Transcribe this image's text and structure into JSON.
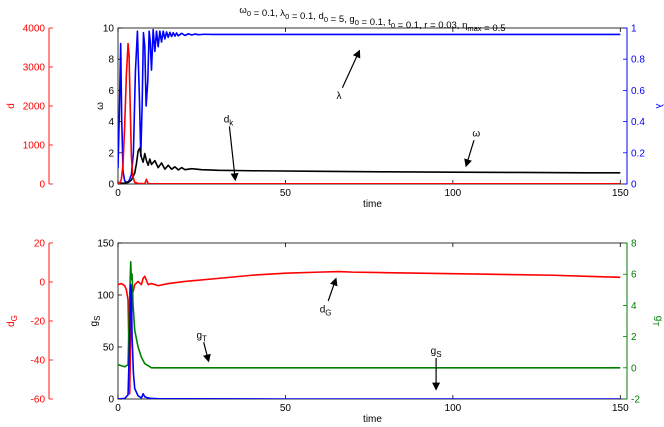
{
  "chart_data": [
    {
      "type": "line",
      "title": "ω0 = 0.1, λ0 = 0.1, d0 = 5, g0 = 0.1, t0 = 0.1, r = 0.03, ηmax = 0.5",
      "title_parts": [
        {
          "t": "ω"
        },
        {
          "t": "0",
          "sub": true
        },
        {
          "t": " = 0.1, λ"
        },
        {
          "t": "0",
          "sub": true
        },
        {
          "t": " = 0.1, d"
        },
        {
          "t": "0",
          "sub": true
        },
        {
          "t": " = 5, g"
        },
        {
          "t": "0",
          "sub": true
        },
        {
          "t": " = 0.1, t"
        },
        {
          "t": "0",
          "sub": true
        },
        {
          "t": " = 0.1, r = 0.03, η"
        },
        {
          "t": "max",
          "sub": true
        },
        {
          "t": " = 0.5"
        }
      ],
      "xlabel": "time",
      "xlim": [
        0,
        152
      ],
      "xticks": [
        0,
        50,
        100,
        150
      ],
      "axes": {
        "omega": {
          "label": "ω",
          "ylim": [
            0,
            10
          ],
          "ticks": [
            0,
            2,
            4,
            6,
            8,
            10
          ],
          "color": "#000000"
        },
        "d": {
          "label": "d",
          "ylim": [
            0,
            4000
          ],
          "ticks": [
            0,
            1000,
            2000,
            3000,
            4000
          ],
          "color": "#ff0000"
        },
        "lambda": {
          "label": "λ",
          "ylim": [
            0,
            1
          ],
          "ticks": [
            0,
            0.2,
            0.4,
            0.6,
            0.8,
            1
          ],
          "color": "#0000ff"
        }
      },
      "series": [
        {
          "key": "lambda",
          "axis": "lambda",
          "color": "#0000ff",
          "width": 1.6,
          "x": [
            0,
            0.4,
            0.8,
            1.1,
            1.5,
            2,
            2.6,
            3.3,
            4,
            4.6,
            5.2,
            5.8,
            6.4,
            6.8,
            7.2,
            7.6,
            8,
            8.4,
            8.9,
            9.3,
            9.6,
            10,
            10.5,
            11,
            11.5,
            12,
            12.5,
            13,
            13.5,
            14,
            14.5,
            15,
            15.5,
            16,
            16.5,
            17,
            17.5,
            18,
            19,
            20,
            21,
            22,
            23,
            24,
            26,
            28,
            30,
            40,
            60,
            80,
            100,
            120,
            140,
            150
          ],
          "y": [
            0.1,
            0.45,
            0.9,
            0.42,
            0.08,
            0.02,
            0.01,
            0.02,
            0.06,
            0.2,
            0.72,
            0.98,
            0.55,
            0.18,
            0.5,
            0.97,
            0.88,
            0.5,
            0.66,
            0.98,
            0.92,
            0.73,
            0.99,
            0.85,
            0.98,
            0.88,
            0.98,
            0.91,
            0.98,
            0.93,
            0.975,
            0.94,
            0.972,
            0.945,
            0.97,
            0.948,
            0.968,
            0.95,
            0.966,
            0.952,
            0.963,
            0.955,
            0.961,
            0.957,
            0.96,
            0.959,
            0.959,
            0.959,
            0.959,
            0.959,
            0.959,
            0.959,
            0.959,
            0.959
          ]
        },
        {
          "key": "omega",
          "axis": "omega",
          "color": "#000000",
          "width": 1.6,
          "x": [
            0,
            1,
            2,
            3,
            4,
            5,
            5.5,
            6,
            6.5,
            7,
            7.5,
            8,
            8.5,
            9,
            9.5,
            10,
            11,
            12,
            13,
            14,
            15,
            16,
            17,
            18,
            19,
            20,
            22,
            25,
            30,
            40,
            60,
            80,
            100,
            120,
            140,
            150
          ],
          "y": [
            0.05,
            0.05,
            0.06,
            0.1,
            0.25,
            0.7,
            1.3,
            2.1,
            2.3,
            1.7,
            1.4,
            1.95,
            1.5,
            1.2,
            1.6,
            1.25,
            1.5,
            1.05,
            1.35,
            0.95,
            1.2,
            0.95,
            1.1,
            0.9,
            1.05,
            0.92,
            0.98,
            0.92,
            0.88,
            0.85,
            0.81,
            0.78,
            0.76,
            0.74,
            0.72,
            0.72
          ]
        },
        {
          "key": "d",
          "axis": "d",
          "color": "#ff0000",
          "width": 1.6,
          "x": [
            0,
            0.5,
            1,
            1.5,
            2,
            2.5,
            3,
            3.3,
            3.7,
            4,
            4.4,
            5,
            6,
            7,
            8,
            8.5,
            9,
            10,
            12,
            15,
            20,
            50,
            100,
            150
          ],
          "y": [
            5,
            20,
            120,
            500,
            1500,
            2800,
            3600,
            3300,
            1800,
            700,
            200,
            40,
            15,
            10,
            5,
            120,
            10,
            5,
            5,
            5,
            5,
            5,
            5,
            5
          ]
        }
      ],
      "annotations": [
        {
          "text": "λ",
          "text_x": 66,
          "text_y": 0.57,
          "tip_x": 72,
          "tip_y": 0.85,
          "axis": "lambda"
        },
        {
          "text": "d",
          "sub": "k",
          "text_x": 33,
          "text_y": 4.2,
          "tip_x": 35,
          "tip_y": 0.3,
          "axis": "omega"
        },
        {
          "text": "ω",
          "text_x": 107,
          "text_y": 3.3,
          "tip_x": 104,
          "tip_y": 1.2,
          "axis": "omega"
        }
      ]
    },
    {
      "type": "line",
      "xlabel": "time",
      "xlim": [
        0,
        152
      ],
      "xticks": [
        0,
        50,
        100,
        150
      ],
      "axes": {
        "gS": {
          "label": "g",
          "label_sub": "S",
          "ylim": [
            0,
            150
          ],
          "ticks": [
            0,
            50,
            100,
            150
          ],
          "color": "#000000"
        },
        "dG": {
          "label": "d",
          "label_sub": "G",
          "ylim": [
            -60,
            20
          ],
          "ticks": [
            -60,
            -40,
            -20,
            0,
            20
          ],
          "color": "#ff0000"
        },
        "gT": {
          "label": "g",
          "label_sub": "T",
          "ylim": [
            -2,
            8
          ],
          "ticks": [
            -2,
            0,
            2,
            4,
            6,
            8
          ],
          "color": "#008000"
        }
      },
      "series": [
        {
          "key": "dG",
          "axis": "gS",
          "color": "#ff0000",
          "width": 1.6,
          "x": [
            0,
            1,
            2,
            2.5,
            3,
            3.5,
            4,
            4.5,
            5,
            6,
            7,
            7.5,
            8,
            9,
            10,
            12,
            15,
            20,
            30,
            40,
            50,
            60,
            66,
            70,
            80,
            90,
            100,
            110,
            120,
            130,
            140,
            150
          ],
          "y": [
            110,
            111,
            109,
            105,
            95,
            5,
            108,
            103,
            110,
            113,
            110,
            116,
            118,
            110,
            111,
            109,
            111,
            113,
            116,
            119,
            121,
            122,
            122.5,
            122,
            121.5,
            121,
            120.5,
            120,
            119.5,
            119,
            118,
            117
          ]
        },
        {
          "key": "gT",
          "axis": "gS",
          "color": "#008000",
          "width": 1.6,
          "x": [
            0,
            1,
            2,
            3,
            3.5,
            3.8,
            4,
            4.2,
            4.5,
            5,
            6,
            7,
            8,
            9,
            10,
            12,
            15,
            20,
            50,
            100,
            150
          ],
          "y": [
            33,
            32,
            31,
            33,
            100,
            132,
            115,
            120,
            90,
            66,
            50,
            40,
            34,
            32,
            30,
            30,
            30,
            30,
            30,
            30,
            30
          ]
        },
        {
          "key": "gS",
          "axis": "gS",
          "color": "#0000ff",
          "width": 1.6,
          "x": [
            0,
            2,
            3,
            3.5,
            3.8,
            4,
            4.2,
            4.6,
            5,
            6,
            7,
            7.5,
            8,
            9,
            10,
            12,
            20,
            50,
            100,
            150
          ],
          "y": [
            0,
            0.5,
            4,
            60,
            110,
            105,
            60,
            25,
            10,
            3,
            1,
            5,
            2,
            1,
            0.5,
            0.3,
            0.2,
            0,
            0,
            0
          ]
        }
      ],
      "annotations": [
        {
          "text": "d",
          "sub": "G",
          "text_x": 62,
          "text_y": 87,
          "tip_x": 65,
          "tip_y": 115,
          "axis": "gS"
        },
        {
          "text": "g",
          "sub": "T",
          "text_x": 25,
          "text_y": 62,
          "tip_x": 27,
          "tip_y": 37,
          "axis": "gS"
        },
        {
          "text": "g",
          "sub": "S",
          "text_x": 95,
          "text_y": 47,
          "tip_x": 95,
          "tip_y": 10,
          "axis": "gS"
        }
      ]
    }
  ]
}
